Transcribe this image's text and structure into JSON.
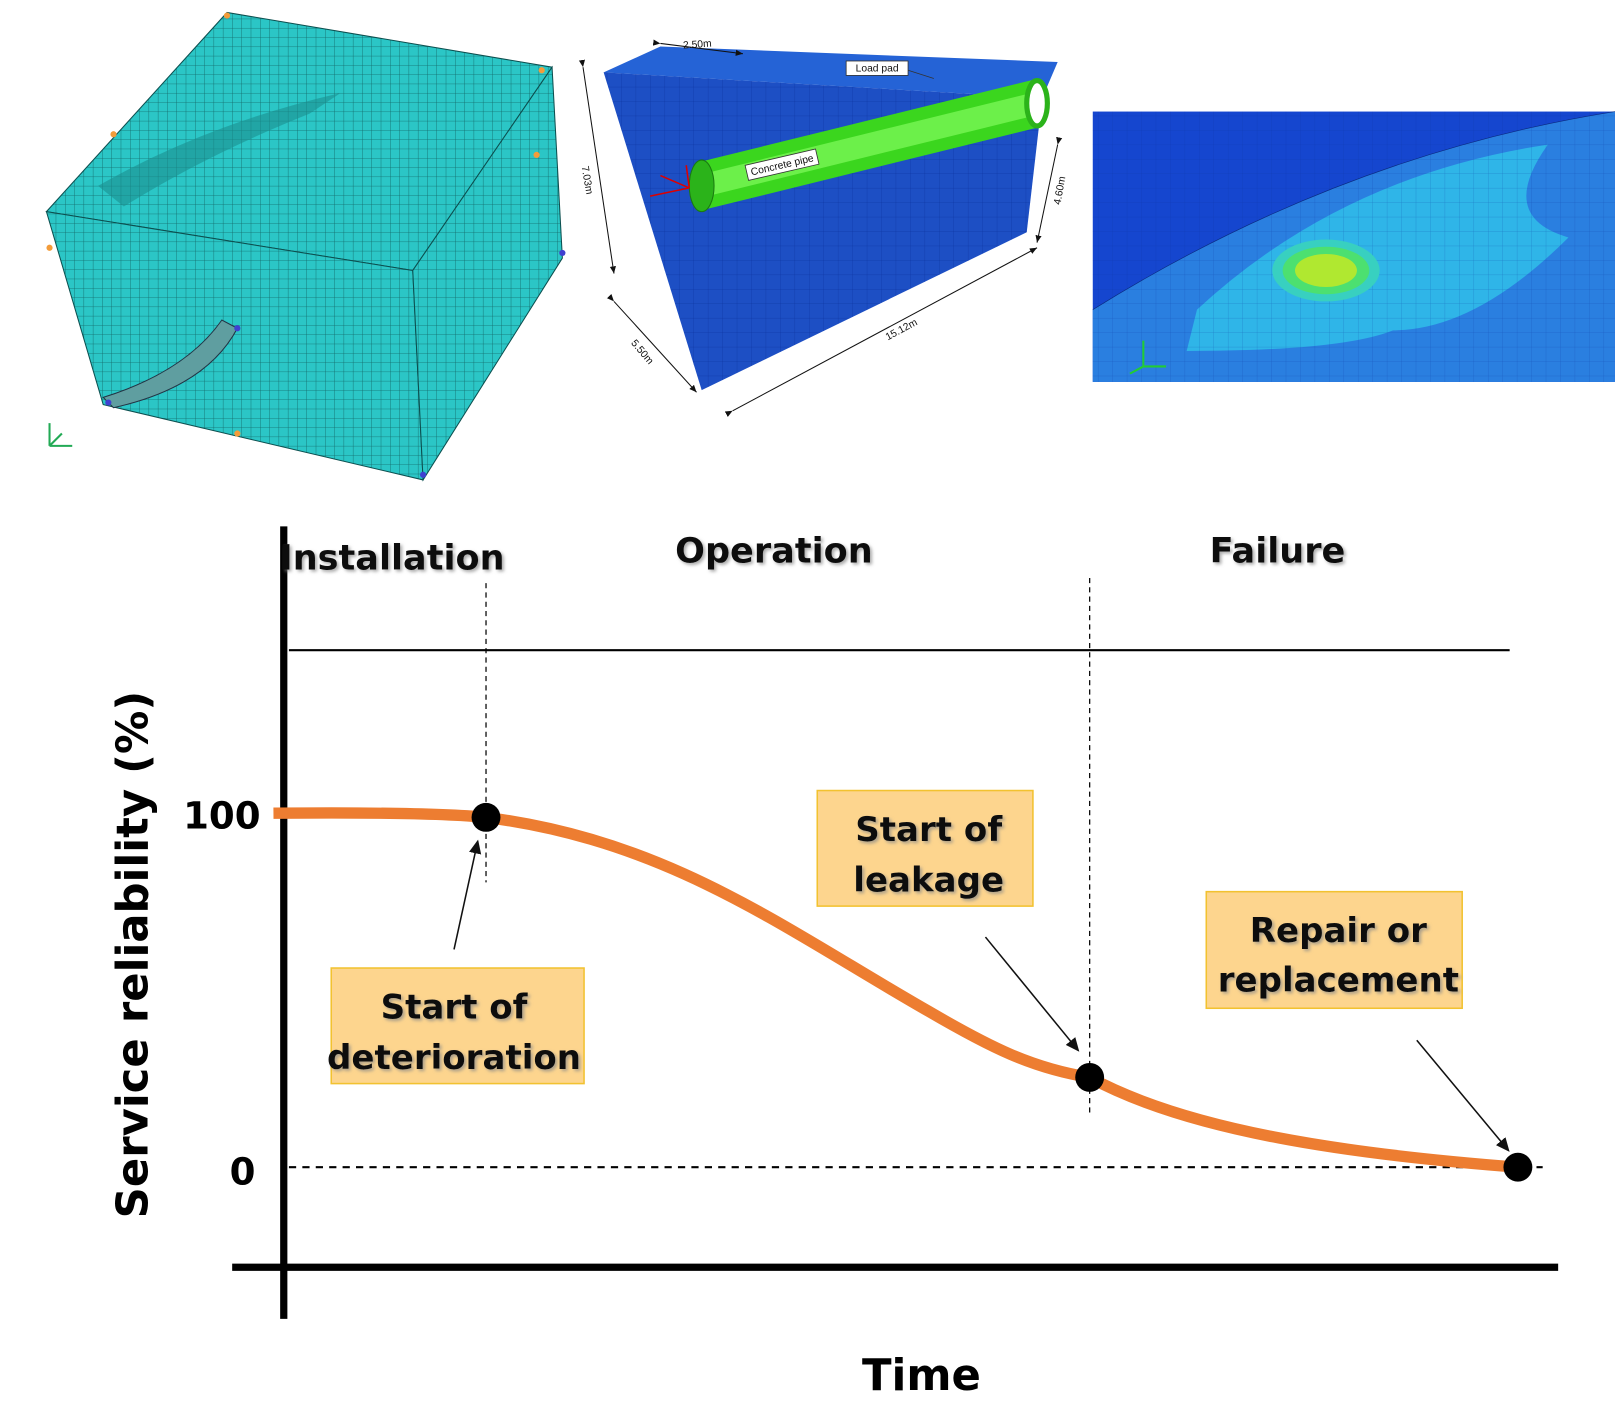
{
  "figure": {
    "pipe_model": {
      "dimensions": [
        "2.50m",
        "7.03m",
        "4.60m",
        "5.50m",
        "15.12m"
      ],
      "labels": [
        "Load pad",
        "Concrete pipe"
      ]
    },
    "chart": {
      "phases": [
        "Installation",
        "Operation",
        "Failure"
      ],
      "y_axis_label": "Service reliability (%)",
      "y_ticks": [
        "100",
        "0"
      ],
      "x_axis_label": "Time",
      "annotations": [
        [
          "Start of",
          "deterioration"
        ],
        [
          "Start of",
          "leakage"
        ],
        [
          "Repair or",
          "replacement"
        ]
      ]
    }
  }
}
